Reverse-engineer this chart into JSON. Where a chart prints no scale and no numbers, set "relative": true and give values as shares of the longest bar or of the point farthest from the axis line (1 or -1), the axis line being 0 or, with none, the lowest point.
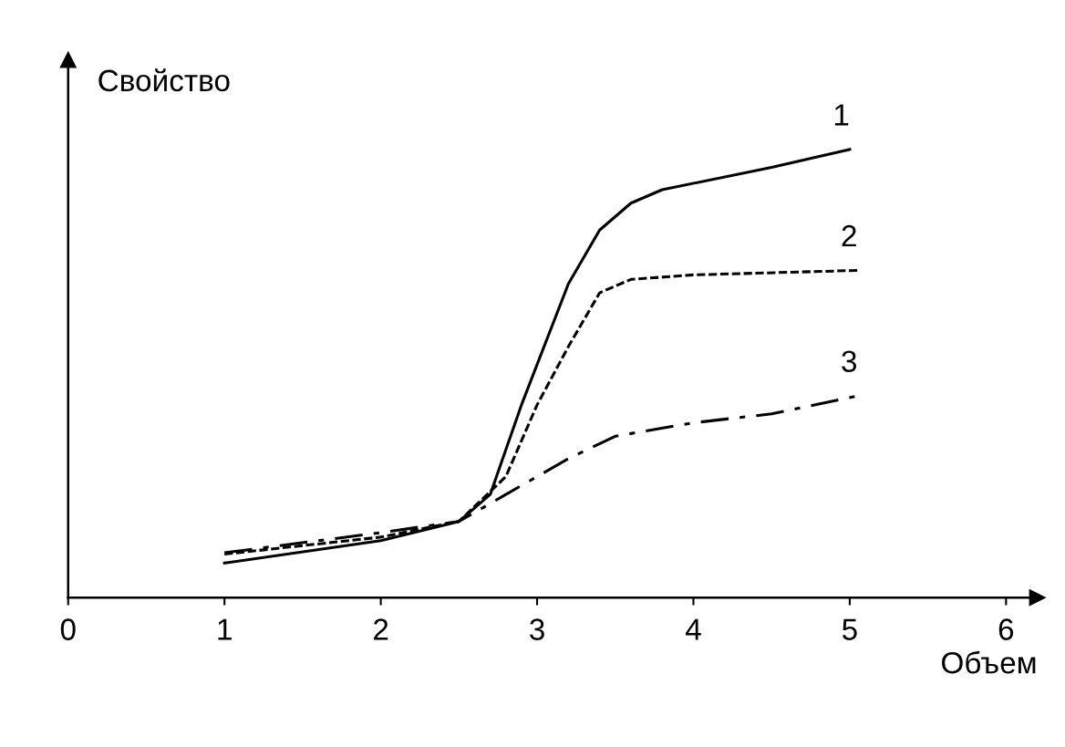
{
  "chart_data": {
    "type": "line",
    "relative": true,
    "xlabel": "Объем",
    "ylabel": "Свойство",
    "xlim": [
      0,
      6.2
    ],
    "xticks": [
      0,
      1,
      2,
      3,
      4,
      5,
      6
    ],
    "tick_labels": "x",
    "grid": false,
    "legend": false,
    "series": [
      {
        "name": "1",
        "color": "#000000",
        "line_style": "solid",
        "x": [
          1,
          2,
          2.5,
          2.7,
          2.9,
          3.2,
          3.4,
          3.6,
          3.8,
          4.5,
          5
        ],
        "values": [
          0.077,
          0.127,
          0.17,
          0.23,
          0.43,
          0.7,
          0.82,
          0.88,
          0.91,
          0.96,
          1
        ]
      },
      {
        "name": "2",
        "color": "#000000",
        "line_style": "dashed",
        "x": [
          1,
          2,
          2.5,
          2.8,
          3.0,
          3.2,
          3.4,
          3.6,
          4.0,
          5.05
        ],
        "values": [
          0.097,
          0.135,
          0.17,
          0.27,
          0.43,
          0.56,
          0.68,
          0.71,
          0.72,
          0.73
        ]
      },
      {
        "name": "3",
        "color": "#000000",
        "line_style": "dashdot",
        "x": [
          1,
          2,
          2.5,
          2.8,
          3.2,
          3.5,
          4.0,
          4.5,
          5.05
        ],
        "values": [
          0.1,
          0.145,
          0.17,
          0.23,
          0.31,
          0.36,
          0.39,
          0.41,
          0.45
        ]
      }
    ]
  }
}
